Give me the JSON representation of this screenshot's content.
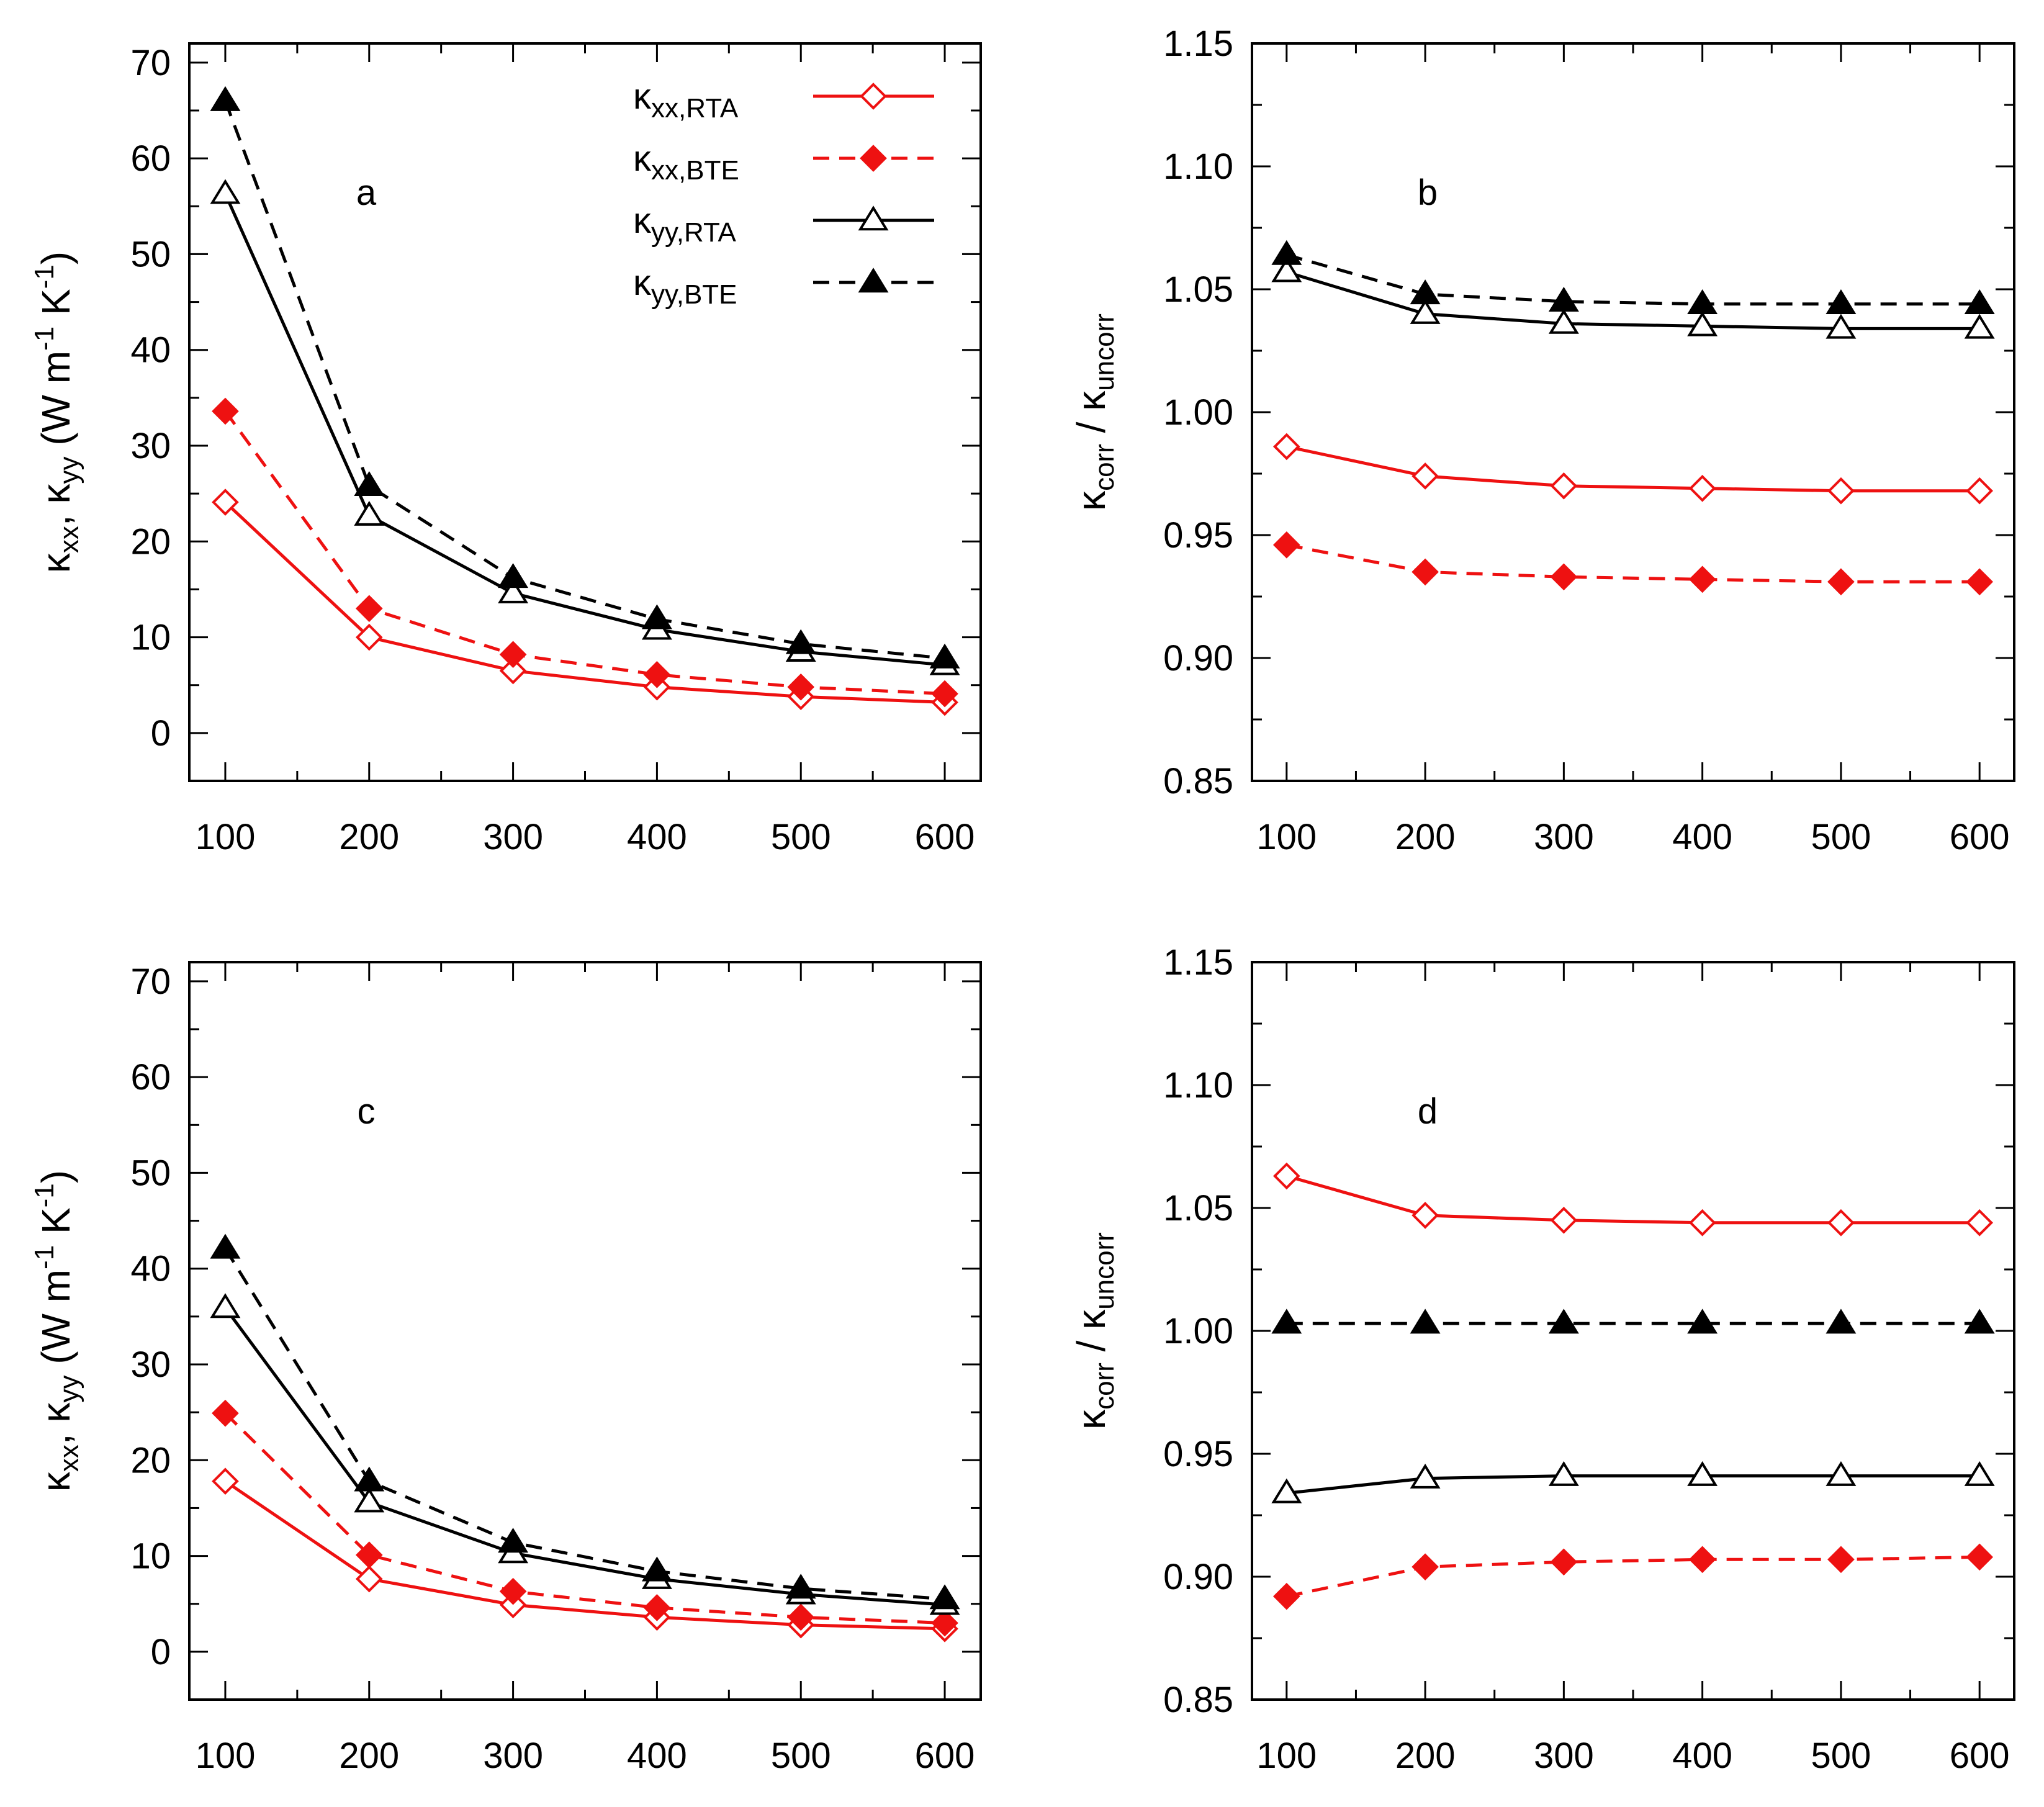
{
  "colors": {
    "red": "#ee1111",
    "black": "#000000"
  },
  "legend": [
    {
      "symbol": "κ",
      "sub": "xx,RTA",
      "color": "red",
      "dashed": false,
      "marker": "diamond-open"
    },
    {
      "symbol": "κ",
      "sub": "xx,BTE",
      "color": "red",
      "dashed": true,
      "marker": "diamond-filled"
    },
    {
      "symbol": "κ",
      "sub": "yy,RTA",
      "color": "black",
      "dashed": false,
      "marker": "triangle-open"
    },
    {
      "symbol": "κ",
      "sub": "yy,BTE",
      "color": "black",
      "dashed": true,
      "marker": "triangle-filled"
    }
  ],
  "ylabels": {
    "conductivity": {
      "k1": "κ",
      "s1": "xx",
      "sep": ", ",
      "k2": "κ",
      "s2": "yy",
      "unit1": " (W m",
      "exp1": "-1",
      "unit2": " K",
      "exp2": "-1",
      "close": ")"
    },
    "ratio": {
      "k1": "κ",
      "s1": "corr",
      "sep": " / ",
      "k2": "κ",
      "s2": "uncorr"
    }
  },
  "chart_data": [
    {
      "panel": "a",
      "type": "line",
      "ylabel": "conductivity",
      "x": [
        100,
        200,
        300,
        400,
        500,
        600
      ],
      "xlim": [
        75,
        625
      ],
      "ylim": [
        -5,
        72
      ],
      "xticks": [
        100,
        200,
        300,
        400,
        500,
        600
      ],
      "yticks": [
        0,
        10,
        20,
        30,
        40,
        50,
        60,
        70
      ],
      "ytick_labels": [
        "0",
        "10",
        "20",
        "30",
        "40",
        "50",
        "60",
        "70"
      ],
      "has_legend": true,
      "series": [
        {
          "name": "κxx,RTA",
          "values": [
            24.1,
            10.0,
            6.5,
            4.8,
            3.8,
            3.2
          ]
        },
        {
          "name": "κxx,BTE",
          "values": [
            33.6,
            13.0,
            8.2,
            6.1,
            4.8,
            4.1
          ]
        },
        {
          "name": "κyy,RTA",
          "values": [
            56.3,
            22.7,
            14.6,
            10.8,
            8.5,
            7.1
          ]
        },
        {
          "name": "κyy,BTE",
          "values": [
            66.0,
            25.8,
            16.2,
            11.9,
            9.3,
            7.8
          ]
        }
      ]
    },
    {
      "panel": "b",
      "type": "line",
      "ylabel": "ratio",
      "x": [
        100,
        200,
        300,
        400,
        500,
        600
      ],
      "xlim": [
        75,
        625
      ],
      "ylim": [
        0.85,
        1.15
      ],
      "xticks": [
        100,
        200,
        300,
        400,
        500,
        600
      ],
      "yticks": [
        0.85,
        0.9,
        0.95,
        1.0,
        1.05,
        1.1,
        1.15
      ],
      "ytick_labels": [
        "0.85",
        "0.90",
        "0.95",
        "1.00",
        "1.05",
        "1.10",
        "1.15"
      ],
      "has_legend": false,
      "series": [
        {
          "name": "κxx,RTA",
          "values": [
            0.986,
            0.974,
            0.97,
            0.969,
            0.968,
            0.968
          ]
        },
        {
          "name": "κxx,BTE",
          "values": [
            0.946,
            0.935,
            0.933,
            0.932,
            0.931,
            0.931
          ]
        },
        {
          "name": "κyy,RTA",
          "values": [
            1.057,
            1.04,
            1.036,
            1.035,
            1.034,
            1.034
          ]
        },
        {
          "name": "κyy,BTE",
          "values": [
            1.064,
            1.048,
            1.045,
            1.044,
            1.044,
            1.044
          ]
        }
      ]
    },
    {
      "panel": "c",
      "type": "line",
      "ylabel": "conductivity",
      "x": [
        100,
        200,
        300,
        400,
        500,
        600
      ],
      "xlim": [
        75,
        625
      ],
      "ylim": [
        -5,
        72
      ],
      "xticks": [
        100,
        200,
        300,
        400,
        500,
        600
      ],
      "yticks": [
        0,
        10,
        20,
        30,
        40,
        50,
        60,
        70
      ],
      "ytick_labels": [
        "0",
        "10",
        "20",
        "30",
        "40",
        "50",
        "60",
        "70"
      ],
      "has_legend": false,
      "series": [
        {
          "name": "κxx,RTA",
          "values": [
            17.8,
            7.6,
            4.9,
            3.6,
            2.8,
            2.4
          ]
        },
        {
          "name": "κxx,BTE",
          "values": [
            24.9,
            10.1,
            6.3,
            4.6,
            3.6,
            3.0
          ]
        },
        {
          "name": "κyy,RTA",
          "values": [
            35.9,
            15.6,
            10.3,
            7.6,
            6.0,
            4.9
          ]
        },
        {
          "name": "κyy,BTE",
          "values": [
            42.1,
            17.8,
            11.4,
            8.4,
            6.6,
            5.5
          ]
        }
      ]
    },
    {
      "panel": "d",
      "type": "line",
      "ylabel": "ratio",
      "x": [
        100,
        200,
        300,
        400,
        500,
        600
      ],
      "xlim": [
        75,
        625
      ],
      "ylim": [
        0.85,
        1.15
      ],
      "xticks": [
        100,
        200,
        300,
        400,
        500,
        600
      ],
      "yticks": [
        0.85,
        0.9,
        0.95,
        1.0,
        1.05,
        1.1,
        1.15
      ],
      "ytick_labels": [
        "0.85",
        "0.90",
        "0.95",
        "1.00",
        "1.05",
        "1.10",
        "1.15"
      ],
      "has_legend": false,
      "series": [
        {
          "name": "κxx,RTA",
          "values": [
            1.063,
            1.047,
            1.045,
            1.044,
            1.044,
            1.044
          ]
        },
        {
          "name": "κxx,BTE",
          "values": [
            0.892,
            0.904,
            0.906,
            0.907,
            0.907,
            0.908
          ]
        },
        {
          "name": "κyy,RTA",
          "values": [
            0.934,
            0.94,
            0.941,
            0.941,
            0.941,
            0.941
          ]
        },
        {
          "name": "κyy,BTE",
          "values": [
            1.003,
            1.003,
            1.003,
            1.003,
            1.003,
            1.003
          ]
        }
      ]
    }
  ]
}
